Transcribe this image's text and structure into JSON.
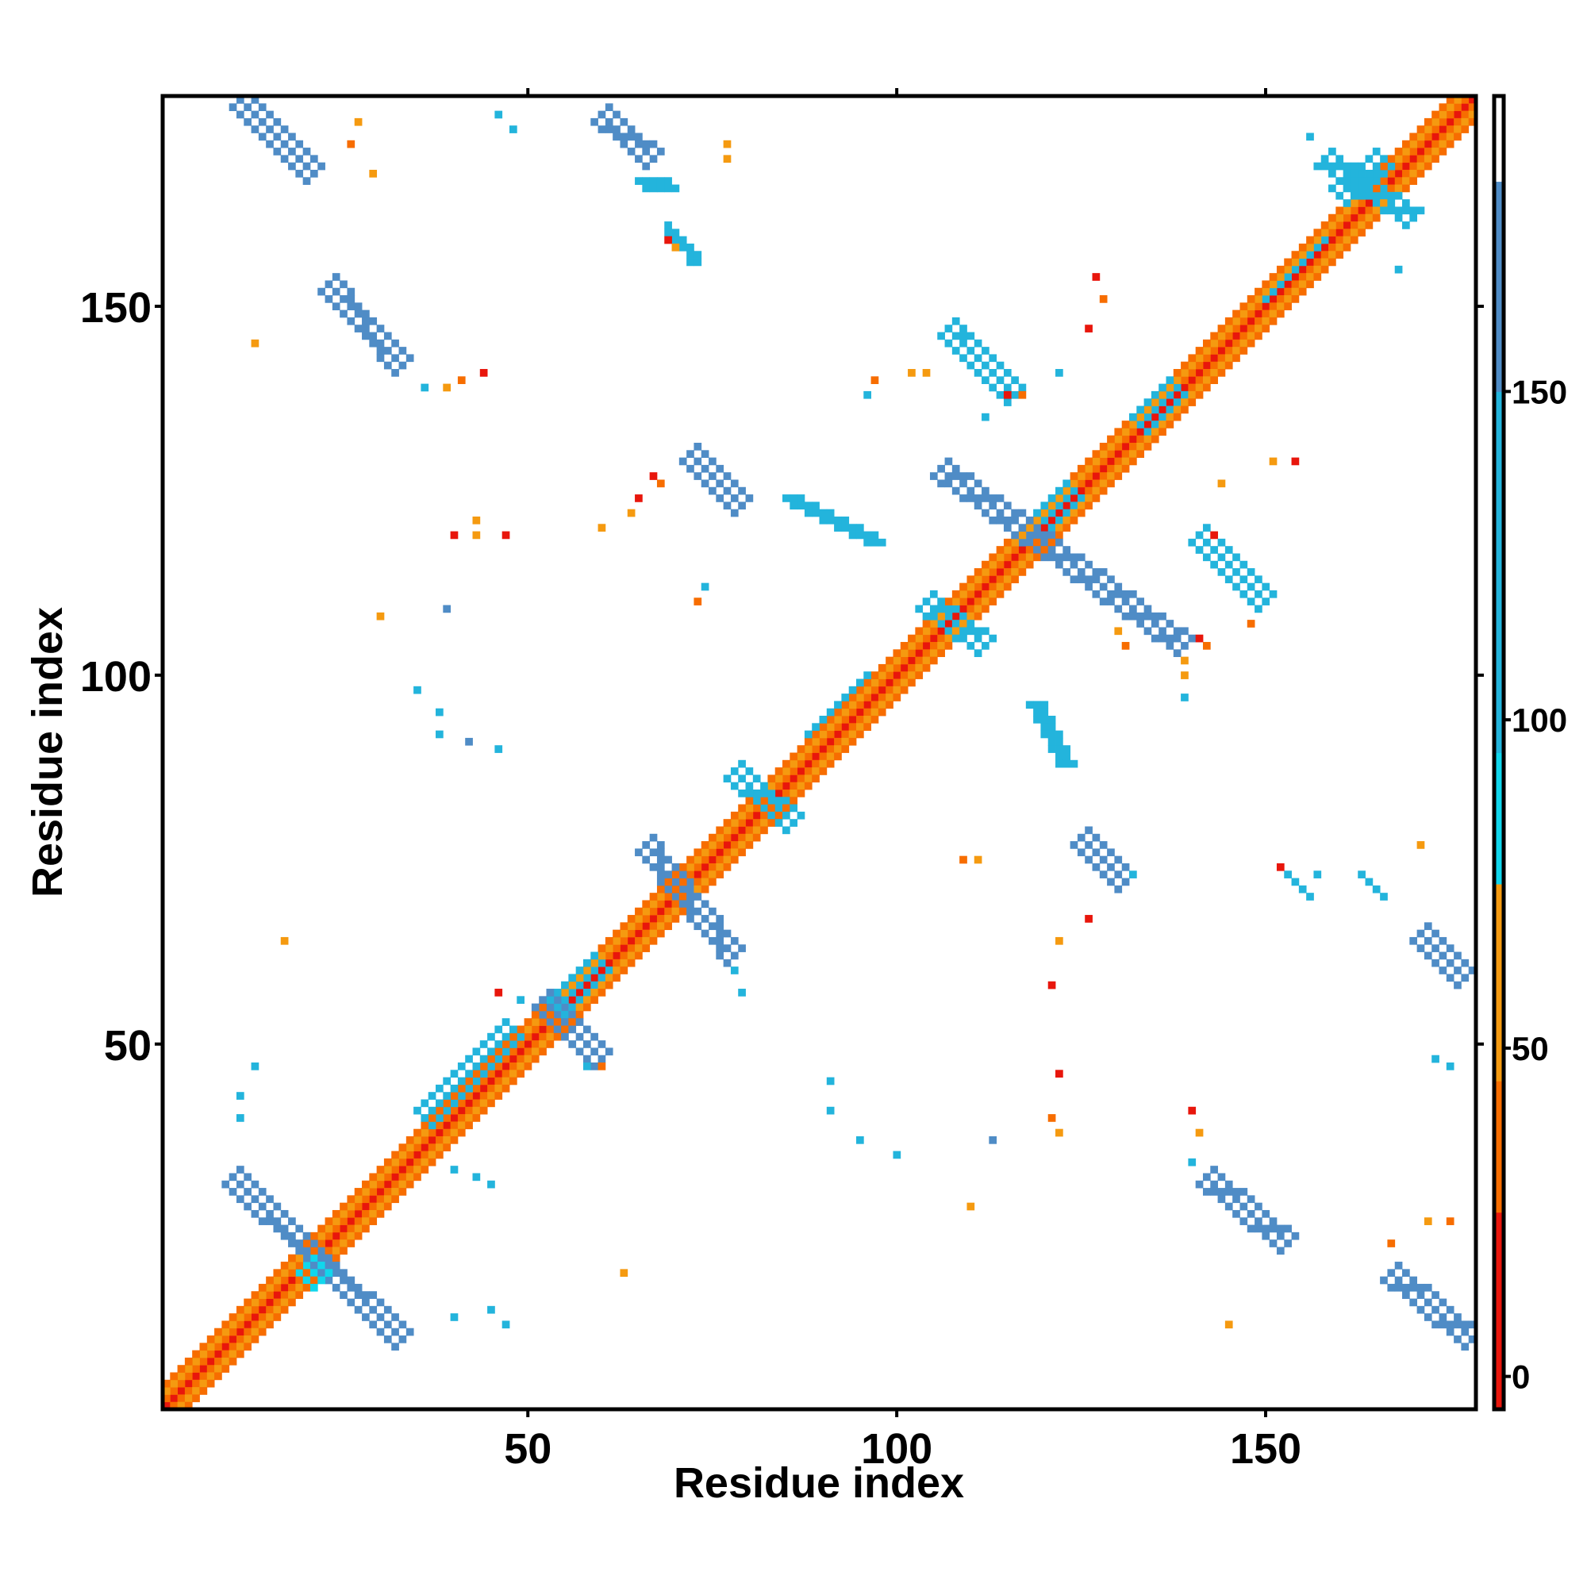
{
  "chart_data": {
    "type": "heatmap",
    "title": "",
    "xlabel": "Residue index",
    "ylabel": "Residue index",
    "xlim": [
      1,
      178
    ],
    "ylim": [
      1,
      178
    ],
    "x_ticks": [
      50,
      100,
      150
    ],
    "y_ticks": [
      50,
      100,
      150
    ],
    "grid": false,
    "legend": "colorbar-right",
    "colorbar": {
      "range": [
        -5,
        195
      ],
      "ticks": [
        0,
        50,
        100,
        150
      ],
      "bands": [
        {
          "from": -5,
          "to": 25,
          "color": "#e8160c"
        },
        {
          "from": 25,
          "to": 45,
          "color": "#f76d00"
        },
        {
          "from": 45,
          "to": 75,
          "color": "#f59a10"
        },
        {
          "from": 75,
          "to": 95,
          "color": "#11d6ec"
        },
        {
          "from": 95,
          "to": 150,
          "color": "#23b4dc"
        },
        {
          "from": 150,
          "to": 182,
          "color": "#4f8cc6"
        },
        {
          "from": 182,
          "to": 195,
          "color": "#ffffff"
        }
      ]
    },
    "segments": [
      {
        "x0": 1,
        "y0": 1,
        "x1": 178,
        "y1": 178,
        "value": 20,
        "width": 1
      },
      {
        "x0": 2,
        "y0": 1,
        "x1": 178,
        "y1": 177,
        "value": 40,
        "width": 1
      },
      {
        "x0": 1,
        "y0": 2,
        "x1": 177,
        "y1": 178,
        "value": 40,
        "width": 1
      },
      {
        "x0": 3,
        "y0": 1,
        "x1": 178,
        "y1": 176,
        "value": 60,
        "width": 1
      },
      {
        "x0": 1,
        "y0": 3,
        "x1": 176,
        "y1": 178,
        "value": 60,
        "width": 1
      },
      {
        "x0": 4,
        "y0": 1,
        "x1": 178,
        "y1": 175,
        "value": 30,
        "width": 1
      },
      {
        "x0": 1,
        "y0": 4,
        "x1": 175,
        "y1": 178,
        "value": 30,
        "width": 1
      },
      {
        "x0": 10,
        "y0": 32,
        "x1": 33,
        "y1": 10,
        "value": 165,
        "width": 3
      },
      {
        "x0": 20,
        "y0": 20,
        "x1": 22,
        "y1": 18,
        "value": 90,
        "width": 3
      },
      {
        "x0": 36,
        "y0": 40,
        "x1": 48,
        "y1": 52,
        "value": 100,
        "width": 3
      },
      {
        "x0": 52,
        "y0": 56,
        "x1": 60,
        "y1": 48,
        "value": 160,
        "width": 3
      },
      {
        "x0": 54,
        "y0": 55,
        "x1": 60,
        "y1": 61,
        "value": 100,
        "width": 3
      },
      {
        "x0": 66,
        "y0": 77,
        "x1": 78,
        "y1": 62,
        "value": 160,
        "width": 3
      },
      {
        "x0": 78,
        "y0": 87,
        "x1": 86,
        "y1": 80,
        "value": 130,
        "width": 3
      },
      {
        "x0": 88,
        "y0": 92,
        "x1": 96,
        "y1": 100,
        "value": 100,
        "width": 2
      },
      {
        "x0": 104,
        "y0": 110,
        "x1": 112,
        "y1": 104,
        "value": 110,
        "width": 3
      },
      {
        "x0": 106,
        "y0": 128,
        "x1": 139,
        "y1": 104,
        "value": 165,
        "width": 3
      },
      {
        "x0": 120,
        "y0": 121,
        "x1": 124,
        "y1": 125,
        "value": 100,
        "width": 3
      },
      {
        "x0": 133,
        "y0": 134,
        "x1": 138,
        "y1": 139,
        "value": 100,
        "width": 3
      },
      {
        "x0": 150,
        "y0": 151,
        "x1": 158,
        "y1": 159,
        "value": 100,
        "width": 2
      },
      {
        "x0": 158,
        "y0": 170,
        "x1": 170,
        "y1": 162,
        "value": 110,
        "width": 3
      },
      {
        "x0": 160,
        "y0": 165,
        "x1": 166,
        "y1": 170,
        "value": 100,
        "width": 3
      },
      {
        "x0": 11,
        "y0": 178,
        "x1": 21,
        "y1": 168,
        "value": 160,
        "width": 3
      },
      {
        "x0": 23,
        "y0": 153,
        "x1": 33,
        "y1": 142,
        "value": 165,
        "width": 3
      },
      {
        "x0": 60,
        "y0": 176,
        "x1": 67,
        "y1": 170,
        "value": 160,
        "width": 3
      },
      {
        "x0": 65,
        "y0": 167,
        "x1": 70,
        "y1": 166,
        "value": 100,
        "width": 2
      },
      {
        "x0": 69,
        "y0": 161,
        "x1": 73,
        "y1": 156,
        "value": 110,
        "width": 2
      },
      {
        "x0": 72,
        "y0": 130,
        "x1": 79,
        "y1": 123,
        "value": 165,
        "width": 3
      },
      {
        "x0": 85,
        "y0": 124,
        "x1": 98,
        "y1": 118,
        "value": 110,
        "width": 2
      },
      {
        "x0": 107,
        "y0": 147,
        "x1": 116,
        "y1": 138,
        "value": 120,
        "width": 3
      },
      {
        "x0": 141,
        "y0": 119,
        "x1": 150,
        "y1": 110,
        "value": 120,
        "width": 3
      },
      {
        "x0": 119,
        "y0": 96,
        "x1": 123,
        "y1": 88,
        "value": 110,
        "width": 3
      },
      {
        "x0": 125,
        "y0": 78,
        "x1": 131,
        "y1": 72,
        "value": 165,
        "width": 3
      },
      {
        "x0": 171,
        "y0": 65,
        "x1": 177,
        "y1": 59,
        "value": 165,
        "width": 3
      },
      {
        "x0": 142,
        "y0": 32,
        "x1": 153,
        "y1": 23,
        "value": 165,
        "width": 3
      },
      {
        "x0": 167,
        "y0": 19,
        "x1": 178,
        "y1": 10,
        "value": 165,
        "width": 3
      },
      {
        "x0": 164,
        "y0": 72,
        "x1": 166,
        "y1": 70,
        "value": 95,
        "width": 2
      },
      {
        "x0": 153,
        "y0": 73,
        "x1": 156,
        "y1": 70,
        "value": 100,
        "width": 2
      }
    ],
    "points": [
      [
        27,
        175,
        60
      ],
      [
        26,
        172,
        40
      ],
      [
        29,
        168,
        50
      ],
      [
        46,
        176,
        110
      ],
      [
        48,
        174,
        95
      ],
      [
        77,
        172,
        60
      ],
      [
        77,
        170,
        60
      ],
      [
        69,
        159,
        20
      ],
      [
        70,
        158,
        60
      ],
      [
        72,
        156,
        110
      ],
      [
        13,
        145,
        60
      ],
      [
        36,
        139,
        95
      ],
      [
        39,
        139,
        50
      ],
      [
        41,
        140,
        30
      ],
      [
        44,
        141,
        20
      ],
      [
        67,
        127,
        20
      ],
      [
        68,
        126,
        30
      ],
      [
        65,
        124,
        20
      ],
      [
        64,
        122,
        60
      ],
      [
        40,
        119,
        20
      ],
      [
        43,
        119,
        60
      ],
      [
        47,
        119,
        20
      ],
      [
        43,
        121,
        50
      ],
      [
        60,
        120,
        60
      ],
      [
        30,
        108,
        50
      ],
      [
        39,
        109,
        160
      ],
      [
        73,
        110,
        40
      ],
      [
        74,
        112,
        100
      ],
      [
        35,
        98,
        110
      ],
      [
        38,
        95,
        95
      ],
      [
        38,
        92,
        95
      ],
      [
        42,
        91,
        160
      ],
      [
        46,
        90,
        110
      ],
      [
        17,
        64,
        60
      ],
      [
        46,
        57,
        20
      ],
      [
        49,
        56,
        100
      ],
      [
        60,
        47,
        30
      ],
      [
        58,
        47,
        95
      ],
      [
        13,
        47,
        110
      ],
      [
        11,
        43,
        110
      ],
      [
        11,
        40,
        95
      ],
      [
        40,
        33,
        110
      ],
      [
        43,
        32,
        110
      ],
      [
        45,
        31,
        95
      ],
      [
        40,
        13,
        110
      ],
      [
        47,
        12,
        95
      ],
      [
        45,
        14,
        110
      ],
      [
        63,
        19,
        60
      ],
      [
        79,
        57,
        110
      ],
      [
        78,
        60,
        100
      ],
      [
        91,
        45,
        95
      ],
      [
        91,
        41,
        110
      ],
      [
        95,
        37,
        110
      ],
      [
        100,
        35,
        95
      ],
      [
        110,
        28,
        50
      ],
      [
        113,
        37,
        160
      ],
      [
        122,
        46,
        20
      ],
      [
        121,
        40,
        30
      ],
      [
        122,
        38,
        60
      ],
      [
        121,
        58,
        20
      ],
      [
        122,
        64,
        50
      ],
      [
        126,
        67,
        20
      ],
      [
        132,
        73,
        110
      ],
      [
        111,
        75,
        50
      ],
      [
        109,
        75,
        30
      ],
      [
        140,
        41,
        20
      ],
      [
        141,
        38,
        50
      ],
      [
        140,
        34,
        100
      ],
      [
        145,
        12,
        50
      ],
      [
        167,
        23,
        40
      ],
      [
        172,
        26,
        60
      ],
      [
        175,
        26,
        40
      ],
      [
        173,
        48,
        100
      ],
      [
        175,
        47,
        110
      ],
      [
        171,
        77,
        60
      ],
      [
        163,
        73,
        110
      ],
      [
        157,
        73,
        95
      ],
      [
        152,
        74,
        20
      ],
      [
        151,
        129,
        60
      ],
      [
        154,
        129,
        20
      ],
      [
        128,
        151,
        40
      ],
      [
        127,
        154,
        20
      ],
      [
        122,
        141,
        95
      ],
      [
        102,
        141,
        50
      ],
      [
        97,
        140,
        30
      ],
      [
        104,
        141,
        60
      ],
      [
        96,
        138,
        110
      ],
      [
        112,
        135,
        110
      ],
      [
        115,
        138,
        20
      ],
      [
        117,
        138,
        30
      ],
      [
        141,
        105,
        20
      ],
      [
        139,
        102,
        50
      ],
      [
        142,
        104,
        40
      ],
      [
        139,
        100,
        60
      ],
      [
        139,
        97,
        110
      ],
      [
        156,
        173,
        110
      ],
      [
        168,
        155,
        110
      ],
      [
        144,
        126,
        50
      ],
      [
        143,
        119,
        20
      ],
      [
        148,
        107,
        30
      ],
      [
        130,
        106,
        50
      ],
      [
        131,
        104,
        40
      ],
      [
        126,
        147,
        20
      ],
      [
        109,
        146,
        95
      ]
    ]
  }
}
